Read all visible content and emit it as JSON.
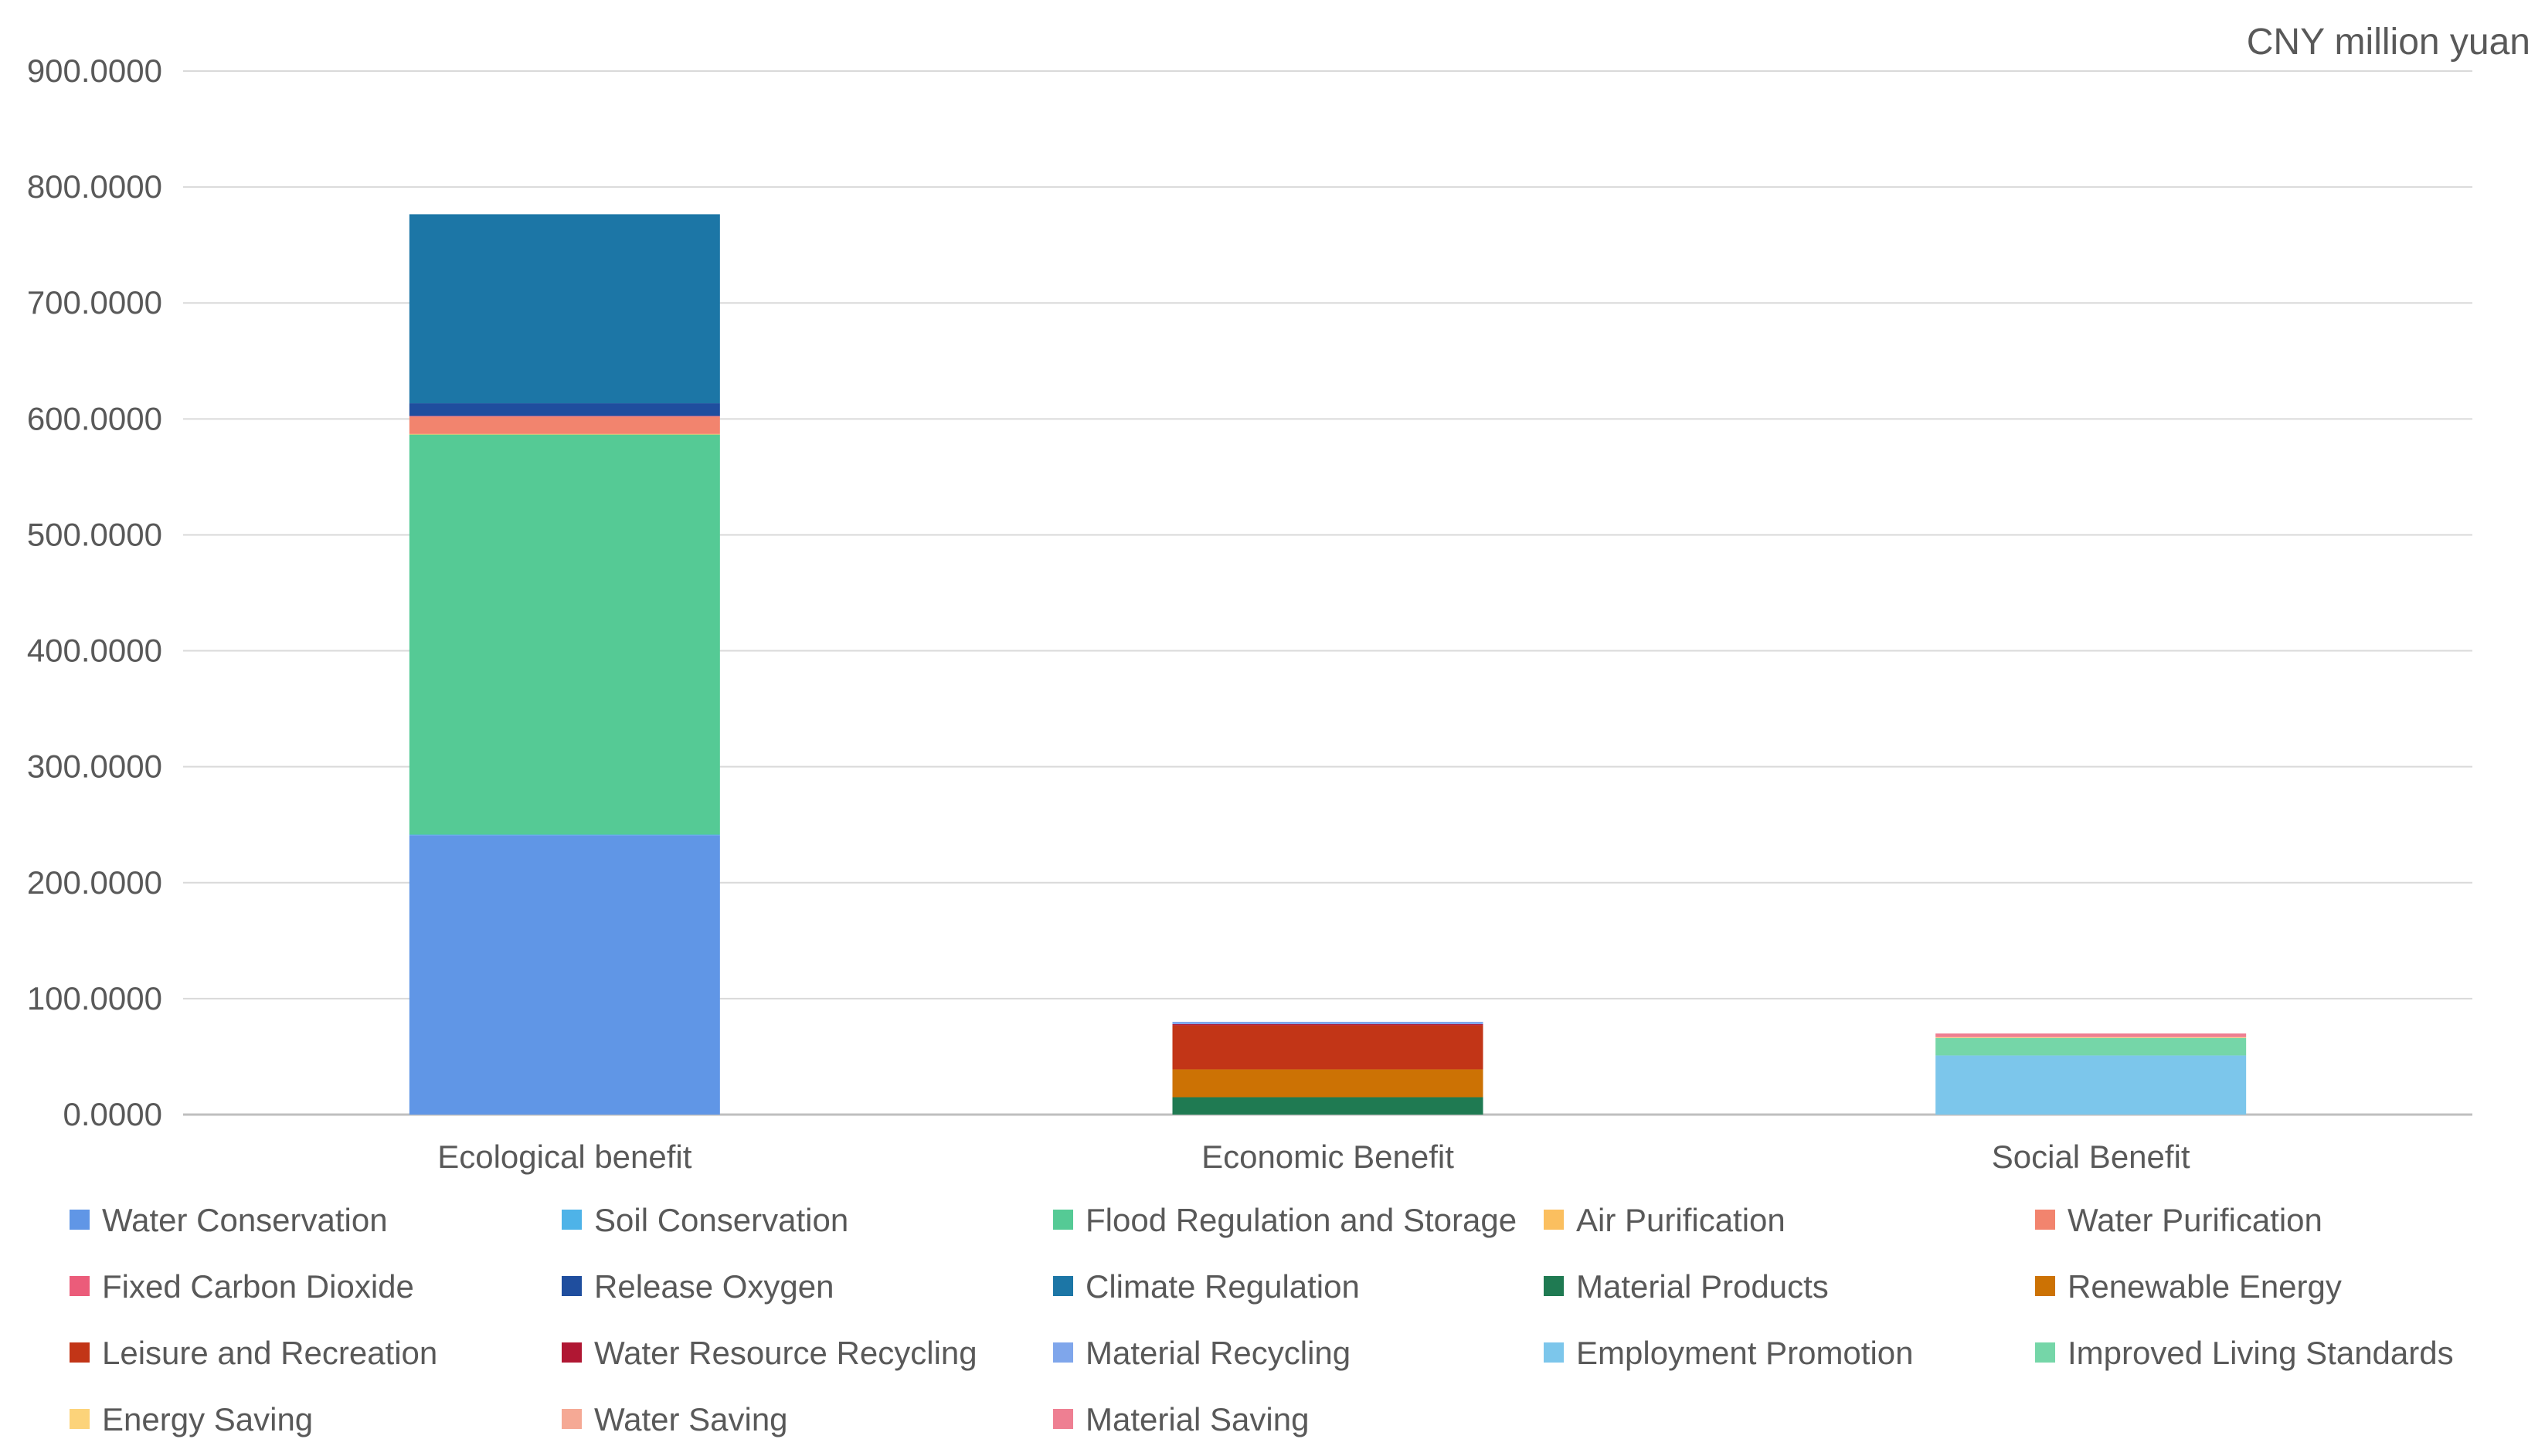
{
  "chart_data": {
    "type": "bar",
    "stacked": true,
    "unit": "CNY million yuan",
    "title": "",
    "xlabel": "",
    "ylabel": "",
    "categories": [
      "Ecological benefit",
      "Economic Benefit",
      "Social Benefit"
    ],
    "ylim": [
      0,
      900
    ],
    "yticks": [
      "0.0000",
      "100.0000",
      "200.0000",
      "300.0000",
      "400.0000",
      "500.0000",
      "600.0000",
      "700.0000",
      "800.0000",
      "900.0000"
    ],
    "grid": true,
    "legend_position": "bottom",
    "series": [
      {
        "name": "Water Conservation",
        "color": "#6096E6",
        "values": [
          241,
          0,
          0
        ]
      },
      {
        "name": "Soil Conservation",
        "color": "#4EB3E8",
        "values": [
          0.5,
          0,
          0
        ]
      },
      {
        "name": "Flood Regulation and Storage",
        "color": "#55CA95",
        "values": [
          345,
          0,
          0
        ]
      },
      {
        "name": "Air Purification",
        "color": "#FBBF5F",
        "values": [
          0.5,
          0,
          0
        ]
      },
      {
        "name": "Water Purification",
        "color": "#F2846E",
        "values": [
          15,
          0,
          0
        ]
      },
      {
        "name": "Fixed Carbon Dioxide",
        "color": "#EB5C7A",
        "values": [
          0.5,
          0,
          0
        ]
      },
      {
        "name": "Release Oxygen",
        "color": "#1F4E9E",
        "values": [
          11,
          0,
          0
        ]
      },
      {
        "name": "Climate Regulation",
        "color": "#1C76A6",
        "values": [
          163,
          0,
          0
        ]
      },
      {
        "name": "Material Products",
        "color": "#1F7A52",
        "values": [
          0,
          15,
          0
        ]
      },
      {
        "name": "Renewable Energy",
        "color": "#CC7204",
        "values": [
          0,
          24,
          0
        ]
      },
      {
        "name": "Leisure and Recreation",
        "color": "#C23517",
        "values": [
          0,
          38,
          0
        ]
      },
      {
        "name": "Water Resource Recycling",
        "color": "#B01733",
        "values": [
          0,
          1,
          0
        ]
      },
      {
        "name": "Material Recycling",
        "color": "#7FA6EB",
        "values": [
          0,
          2,
          0
        ]
      },
      {
        "name": "Employment Promotion",
        "color": "#7CC6EB",
        "values": [
          0,
          0,
          51
        ]
      },
      {
        "name": "Improved Living Standards",
        "color": "#75D6A8",
        "values": [
          0,
          0,
          15
        ]
      },
      {
        "name": "Energy Saving",
        "color": "#FCD37A",
        "values": [
          0,
          0,
          0.5
        ]
      },
      {
        "name": "Water Saving",
        "color": "#F5A995",
        "values": [
          0,
          0,
          0.5
        ]
      },
      {
        "name": "Material Saving",
        "color": "#EE7F92",
        "values": [
          0,
          0,
          3
        ]
      }
    ]
  }
}
